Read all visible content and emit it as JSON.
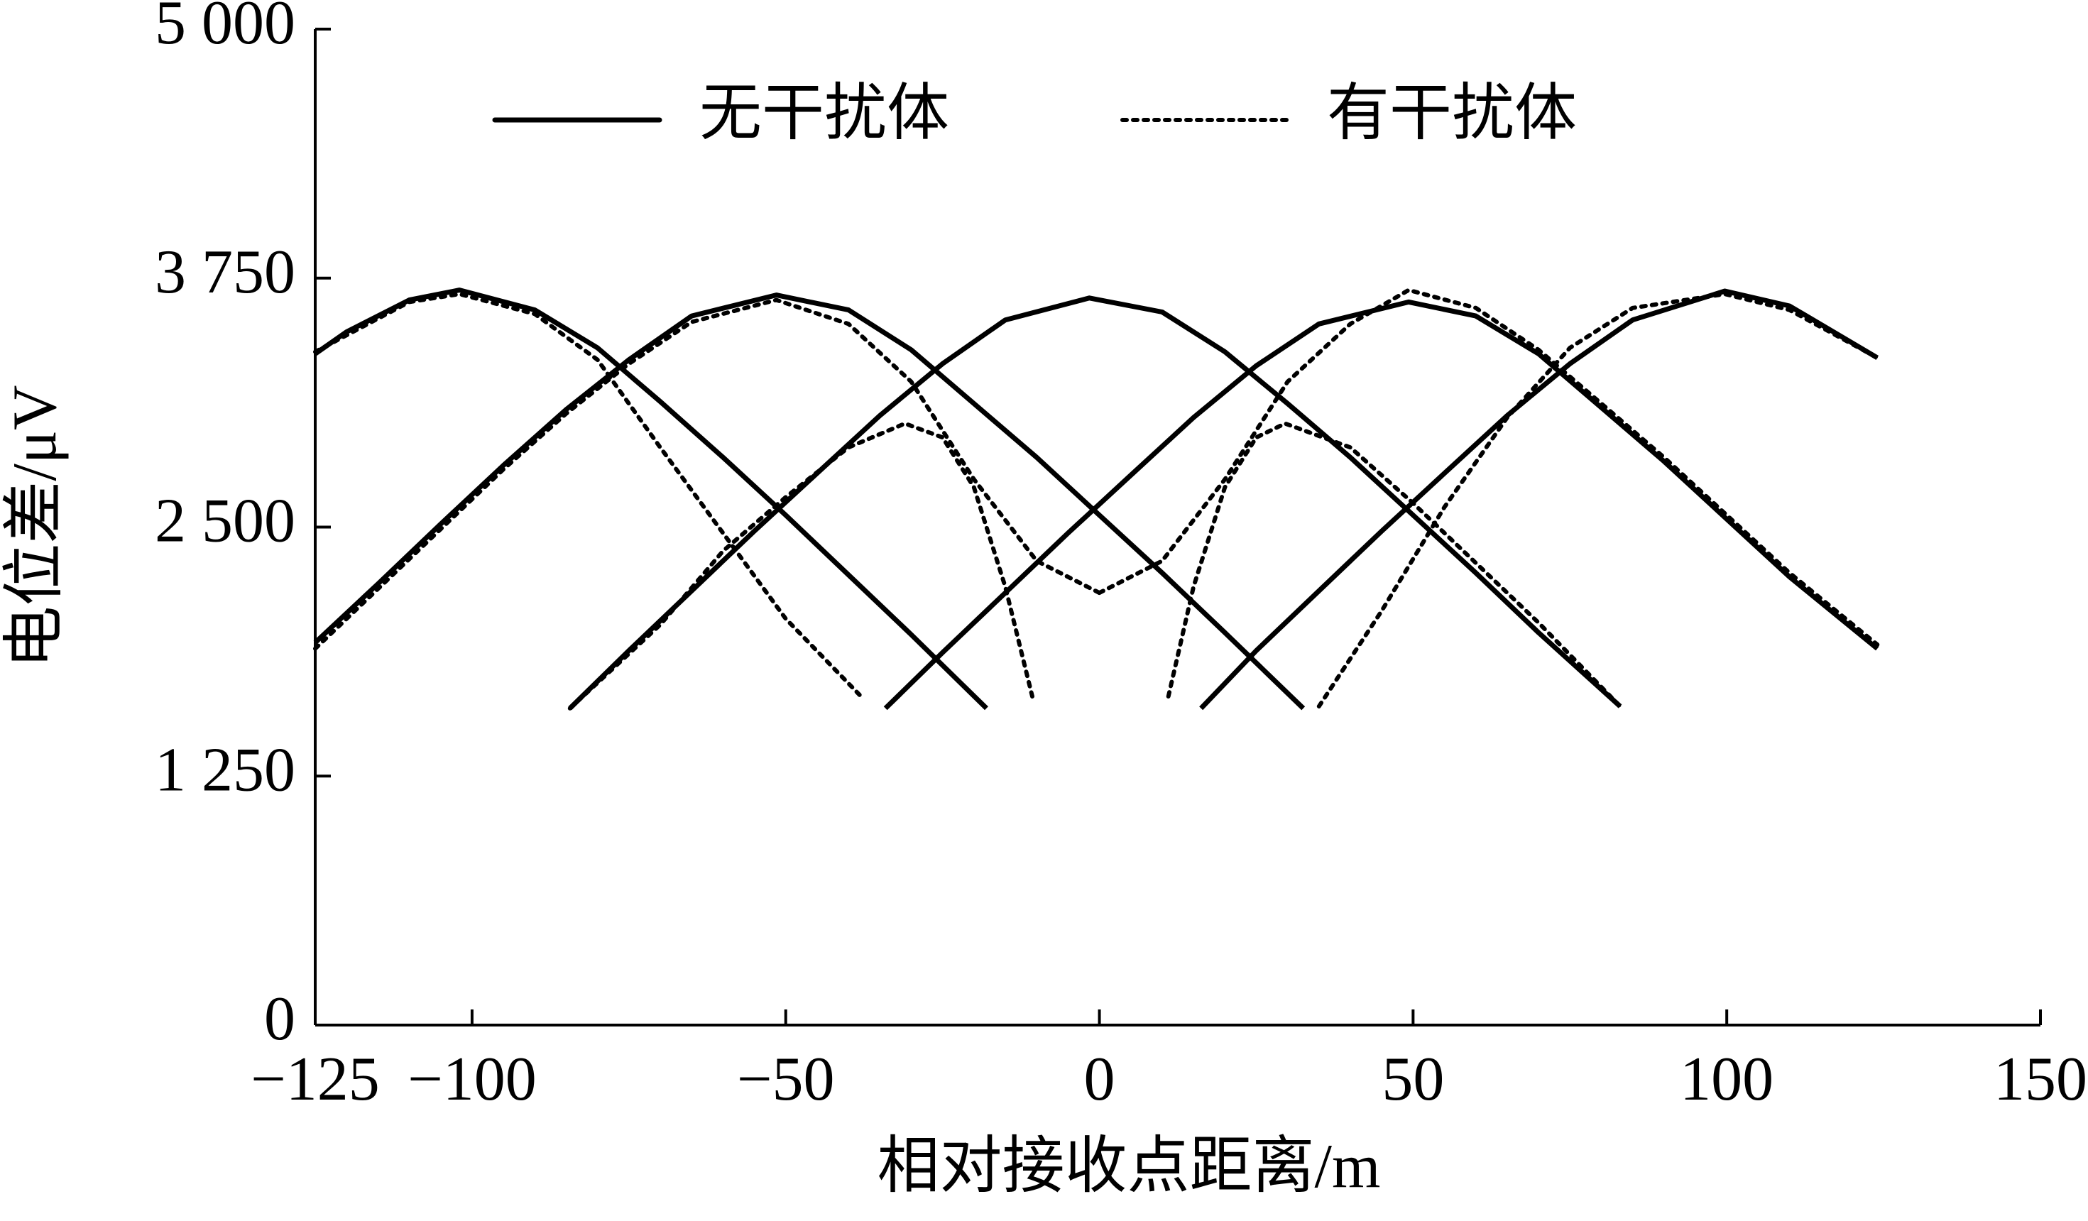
{
  "chart_data": {
    "type": "line",
    "xlabel": "相对接收点距离/m",
    "ylabel": "电位差/μV",
    "xlim": [
      -125,
      150
    ],
    "xticks": [
      {
        "value": -125,
        "label": "−125"
      },
      {
        "value": -100,
        "label": "−100"
      },
      {
        "value": -50,
        "label": "−50"
      },
      0,
      50,
      100,
      150
    ],
    "ylim": [
      0,
      5000
    ],
    "yticks": [
      0,
      {
        "value": 1250,
        "label": "1 250"
      },
      {
        "value": 2500,
        "label": "2 500"
      },
      {
        "value": 3750,
        "label": "3 750"
      },
      {
        "value": 5000,
        "label": "5 000"
      }
    ],
    "series": [
      {
        "name": "无干扰体",
        "color": "#000000",
        "dash": "solid",
        "lines": [
          {
            "x": [
              -125,
              -120,
              -110,
              -102,
              -90,
              -80,
              -70,
              -60,
              -50,
              -40,
              -30,
              -18
            ],
            "values": [
              3370,
              3480,
              3640,
              3690,
              3590,
              3400,
              3130,
              2850,
              2560,
              2260,
              1960,
              1590
            ]
          },
          {
            "x": [
              -125,
              -115,
              -105,
              -95,
              -85,
              -75,
              -65,
              -51.5,
              -40,
              -30,
              -20,
              -10,
              0,
              10,
              20,
              32.5
            ],
            "values": [
              1920,
              2215,
              2515,
              2810,
              3090,
              3340,
              3560,
              3665,
              3590,
              3390,
              3120,
              2850,
              2560,
              2270,
              1970,
              1590
            ]
          },
          {
            "x": [
              -84.4,
              -75,
              -65,
              -55,
              -45,
              -35,
              -25,
              -15,
              -1.6,
              10,
              20,
              30,
              40,
              50,
              60,
              70,
              83
            ],
            "values": [
              1590,
              1880,
              2180,
              2480,
              2770,
              3060,
              3320,
              3540,
              3650,
              3580,
              3380,
              3120,
              2850,
              2560,
              2270,
              1970,
              1600
            ]
          },
          {
            "x": [
              -34.1,
              -25,
              -15,
              -5,
              5,
              15,
              25,
              35,
              49.3,
              60,
              70,
              80,
              90,
              100,
              110,
              124
            ],
            "values": [
              1590,
              1870,
              2170,
              2470,
              2760,
              3050,
              3310,
              3520,
              3630,
              3560,
              3370,
              3100,
              2830,
              2540,
              2250,
              1890
            ]
          },
          {
            "x": [
              16.2,
              25,
              35,
              45,
              55,
              65,
              75,
              85,
              99.7,
              110,
              124
            ],
            "values": [
              1590,
              1880,
              2180,
              2480,
              2770,
              3060,
              3320,
              3540,
              3685,
              3610,
              3350
            ]
          }
        ]
      },
      {
        "name": "有干扰体",
        "color": "#000000",
        "dash": "dotted",
        "lines": [
          {
            "x": [
              -125,
              -110,
              -102,
              -90,
              -80,
              -70,
              -60,
              -50,
              -38
            ],
            "values": [
              3380,
              3630,
              3670,
              3570,
              3340,
              2900,
              2470,
              2040,
              1650
            ]
          },
          {
            "x": [
              -125,
              -115,
              -105,
              -95,
              -85,
              -75,
              -65,
              -51.5,
              -40,
              -30,
              -20,
              -10,
              0
            ],
            "values": [
              1890,
              2190,
              2490,
              2790,
              3070,
              3320,
              3530,
              3640,
              3520,
              3230,
              2740,
              2330,
              2170
            ]
          },
          {
            "x": [
              -84.4,
              -70,
              -60,
              -50,
              -40,
              -31,
              -25,
              -20,
              -15,
              -10.7,
              0,
              11,
              15,
              20,
              25,
              29.6,
              40,
              50,
              60,
              70,
              83
            ],
            "values": [
              1590,
              2010,
              2380,
              2650,
              2900,
              3020,
              2950,
              2700,
              2200,
              1650,
              null,
              1650,
              2200,
              2700,
              2950,
              3020,
              2900,
              2620,
              2320,
              2020,
              1600
            ]
          },
          {
            "x": [
              0,
              10,
              20,
              30,
              40,
              49.3,
              60,
              70,
              80,
              90,
              100,
              110,
              124
            ],
            "values": [
              2170,
              2330,
              2740,
              3230,
              3520,
              3690,
              3600,
              3390,
              3120,
              2850,
              2560,
              2270,
              1910
            ]
          },
          {
            "x": [
              35,
              45,
              55,
              65,
              75,
              85,
              99.7,
              110,
              124
            ],
            "values": [
              1600,
              2080,
              2600,
              3050,
              3400,
              3600,
              3670,
              3590,
              3350
            ]
          }
        ]
      }
    ]
  }
}
